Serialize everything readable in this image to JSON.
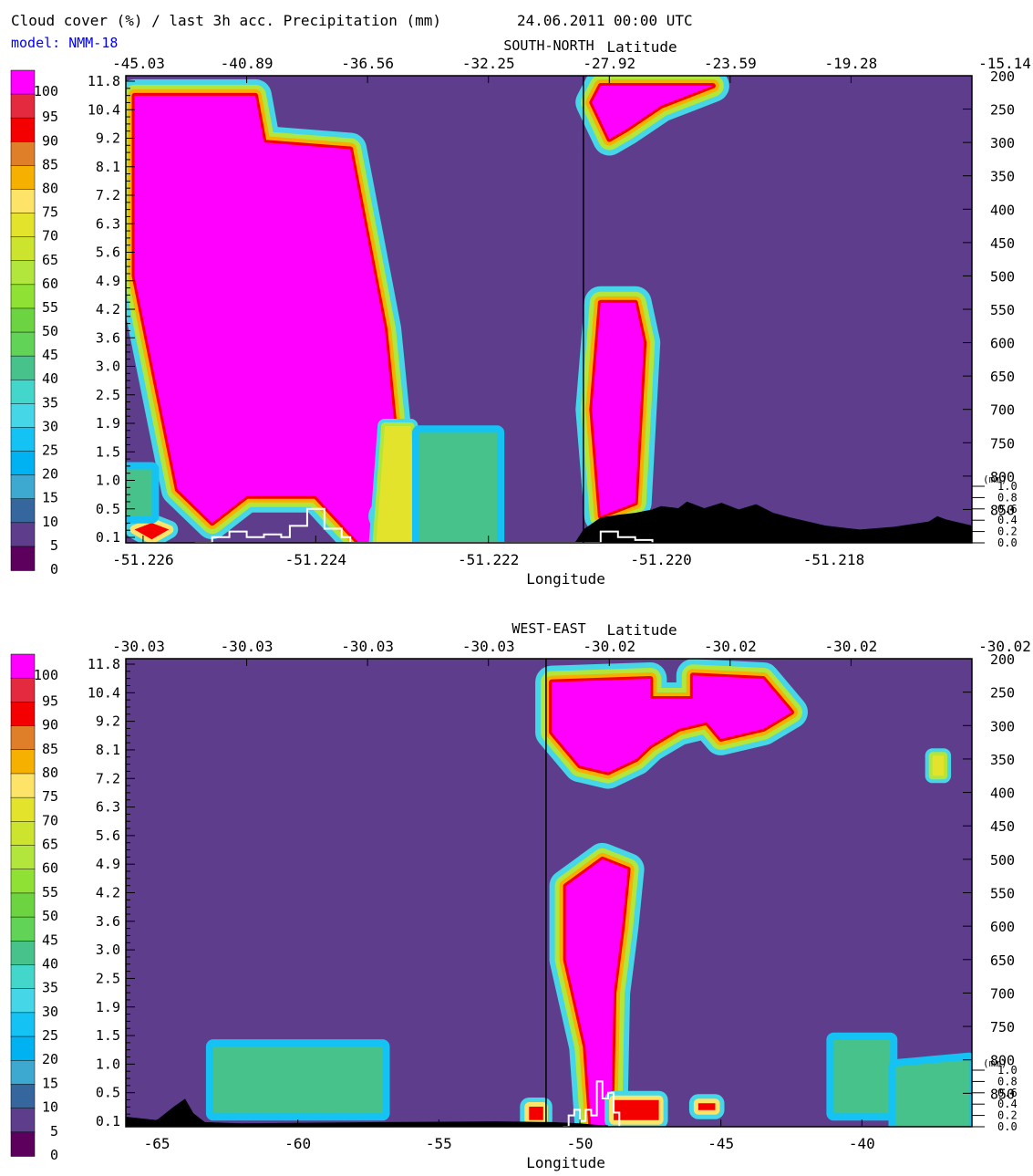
{
  "header": {
    "title": "Cloud cover (%) / last 3h acc. Precipitation (mm)",
    "datetime": "24.06.2011   00:00 UTC",
    "model": "model: NMM-18",
    "model_color": "#0000ff"
  },
  "colors": {
    "background": "#ffffff",
    "cloud_free": "#5e3d8d",
    "orography": "#000000",
    "precip_line": "#ffffff",
    "axis": "#000000"
  },
  "colorbar": {
    "labels": [
      "0",
      "5",
      "10",
      "15",
      "20",
      "25",
      "30",
      "35",
      "40",
      "45",
      "50",
      "55",
      "60",
      "65",
      "70",
      "75",
      "80",
      "85",
      "90",
      "95",
      "100"
    ],
    "colors": [
      "#5d005d",
      "#5e3d8d",
      "#35669d",
      "#3da8d0",
      "#00b2f2",
      "#14c2f4",
      "#45d6e7",
      "#43d7cb",
      "#47c28b",
      "#61d458",
      "#6cd440",
      "#8fe233",
      "#b2e63d",
      "#cde42e",
      "#e3e32c",
      "#fde468",
      "#f6b100",
      "#e07f29",
      "#f50000",
      "#e42a3e",
      "#ff00ff"
    ]
  },
  "chart_data": [
    {
      "type": "heatmap",
      "panel": "SOUTH-NORTH",
      "section_label": "SOUTH-NORTH",
      "top_axis_label": "Latitude",
      "bottom_axis_label": "Longitude",
      "top_ticks": [
        "-45.03",
        "-40.89",
        "-36.56",
        "-32.25",
        "-27.92",
        "-23.59",
        "-19.28",
        "-15.14"
      ],
      "bottom_ticks": [
        {
          "value": -51.226,
          "label": "-51.226"
        },
        {
          "value": -51.224,
          "label": "-51.224"
        },
        {
          "value": -51.222,
          "label": "-51.222"
        },
        {
          "value": -51.22,
          "label": "-51.220"
        },
        {
          "value": -51.218,
          "label": "-51.218"
        }
      ],
      "xlim": [
        -51.2262,
        -51.2164
      ],
      "marker_x": -51.2209,
      "left_ticks": [
        "11.8",
        "10.4",
        "9.2",
        "8.1",
        "7.2",
        "6.3",
        "5.6",
        "4.9",
        "4.2",
        "3.6",
        "3.0",
        "2.5",
        "1.9",
        "1.5",
        "1.0",
        "0.5",
        "0.1"
      ],
      "right_ticks": [
        "200",
        "250",
        "300",
        "350",
        "400",
        "450",
        "500",
        "550",
        "600",
        "650",
        "700",
        "750",
        "800",
        "850"
      ],
      "pressure_range_hpa": [
        200,
        900
      ],
      "precip_ticks": [
        "1.0",
        "0.8",
        "0.6",
        "0.4",
        "0.2",
        "0.0"
      ],
      "precip_unit": "(mm)",
      "precip_range_mm": [
        0,
        1.0
      ],
      "clouds": [
        {
          "cover": 100,
          "poly": [
            [
              -51.2261,
              230
            ],
            [
              -51.2247,
              230
            ],
            [
              -51.2246,
              300
            ],
            [
              -51.2236,
              310
            ],
            [
              -51.2232,
              580
            ],
            [
              -51.223,
              840
            ],
            [
              -51.2225,
              900
            ],
            [
              -51.2235,
              900
            ],
            [
              -51.224,
              830
            ],
            [
              -51.2248,
              830
            ],
            [
              -51.2252,
              870
            ],
            [
              -51.2256,
              820
            ],
            [
              -51.2261,
              500
            ]
          ]
        },
        {
          "cover": 100,
          "poly": [
            [
              -51.2207,
              215
            ],
            [
              -51.2194,
              215
            ],
            [
              -51.22,
              245
            ],
            [
              -51.2204,
              280
            ],
            [
              -51.2206,
              295
            ],
            [
              -51.2208,
              240
            ]
          ]
        },
        {
          "cover": 100,
          "poly": [
            [
              -51.2207,
              540
            ],
            [
              -51.2203,
              540
            ],
            [
              -51.2202,
              600
            ],
            [
              -51.2203,
              840
            ],
            [
              -51.2207,
              860
            ],
            [
              -51.2208,
              700
            ]
          ]
        },
        {
          "cover": 100,
          "poly": [
            [
              -51.2232,
              860
            ],
            [
              -51.223,
              900
            ],
            [
              -51.2227,
              900
            ]
          ]
        },
        {
          "cover": 90,
          "poly": [
            [
              -51.2261,
              880
            ],
            [
              -51.2259,
              870
            ],
            [
              -51.2257,
              880
            ],
            [
              -51.2259,
              895
            ]
          ]
        },
        {
          "cover": 60,
          "poly": [
            [
              -51.2232,
              725
            ],
            [
              -51.2229,
              725
            ],
            [
              -51.2228,
              900
            ],
            [
              -51.2233,
              900
            ]
          ]
        },
        {
          "cover": 40,
          "poly": [
            [
              -51.2228,
              735
            ],
            [
              -51.2219,
              735
            ],
            [
              -51.2219,
              900
            ],
            [
              -51.2228,
              900
            ]
          ]
        },
        {
          "cover": 40,
          "poly": [
            [
              -51.2262,
              790
            ],
            [
              -51.2259,
              790
            ],
            [
              -51.2259,
              860
            ],
            [
              -51.2262,
              860
            ]
          ]
        }
      ],
      "orography": [
        [
          -51.221,
          900
        ],
        [
          -51.2209,
          880
        ],
        [
          -51.2207,
          862
        ],
        [
          -51.2205,
          858
        ],
        [
          -51.2203,
          855
        ],
        [
          -51.2201,
          850
        ],
        [
          -51.22,
          845
        ],
        [
          -51.2198,
          848
        ],
        [
          -51.2197,
          838
        ],
        [
          -51.2195,
          848
        ],
        [
          -51.2193,
          840
        ],
        [
          -51.2191,
          850
        ],
        [
          -51.2189,
          842
        ],
        [
          -51.2187,
          855
        ],
        [
          -51.2185,
          862
        ],
        [
          -51.2183,
          868
        ],
        [
          -51.2181,
          874
        ],
        [
          -51.2179,
          877
        ],
        [
          -51.2177,
          880
        ],
        [
          -51.2175,
          878
        ],
        [
          -51.2173,
          876
        ],
        [
          -51.2171,
          872
        ],
        [
          -51.2169,
          868
        ],
        [
          -51.2168,
          860
        ],
        [
          -51.2167,
          865
        ],
        [
          -51.2166,
          868
        ],
        [
          -51.2164,
          874
        ],
        [
          -51.2164,
          900
        ]
      ],
      "precipitation": [
        [
          -51.2254,
          0.0
        ],
        [
          -51.2252,
          0.1
        ],
        [
          -51.225,
          0.2
        ],
        [
          -51.2248,
          0.1
        ],
        [
          -51.2246,
          0.15
        ],
        [
          -51.2244,
          0.1
        ],
        [
          -51.2243,
          0.3
        ],
        [
          -51.2241,
          0.6
        ],
        [
          -51.2239,
          0.25
        ],
        [
          -51.2237,
          0.1
        ],
        [
          -51.2236,
          0.0
        ],
        [
          -51.2209,
          0.0
        ],
        [
          -51.2207,
          0.2
        ],
        [
          -51.2205,
          0.1
        ],
        [
          -51.2203,
          0.05
        ],
        [
          -51.2201,
          0.0
        ]
      ]
    },
    {
      "type": "heatmap",
      "panel": "WEST-EAST",
      "section_label": "WEST-EAST",
      "top_axis_label": "Latitude",
      "bottom_axis_label": "Longitude",
      "top_ticks": [
        "-30.03",
        "-30.03",
        "-30.03",
        "-30.03",
        "-30.02",
        "-30.02",
        "-30.02",
        "-30.02"
      ],
      "bottom_ticks": [
        {
          "value": -65,
          "label": "-65"
        },
        {
          "value": -60,
          "label": "-60"
        },
        {
          "value": -55,
          "label": "-55"
        },
        {
          "value": -50,
          "label": "-50"
        },
        {
          "value": -45,
          "label": "-45"
        },
        {
          "value": -40,
          "label": "-40"
        }
      ],
      "xlim": [
        -66.1,
        -36.1
      ],
      "marker_x": -51.2,
      "left_ticks": [
        "11.8",
        "10.4",
        "9.2",
        "8.1",
        "7.2",
        "6.3",
        "5.6",
        "4.9",
        "4.2",
        "3.6",
        "3.0",
        "2.5",
        "1.9",
        "1.5",
        "1.0",
        "0.5",
        "0.1"
      ],
      "right_ticks": [
        "200",
        "250",
        "300",
        "350",
        "400",
        "450",
        "500",
        "550",
        "600",
        "650",
        "700",
        "750",
        "800",
        "850"
      ],
      "pressure_range_hpa": [
        200,
        900
      ],
      "precip_ticks": [
        "1.0",
        "0.8",
        "0.6",
        "0.4",
        "0.2",
        "0.0"
      ],
      "precip_unit": "(mm)",
      "precip_range_mm": [
        0,
        1.0
      ],
      "clouds": [
        {
          "cover": 100,
          "poly": [
            [
              -51,
              235
            ],
            [
              -47.5,
              230
            ],
            [
              -47.5,
              260
            ],
            [
              -46,
              260
            ],
            [
              -46,
              225
            ],
            [
              -43.5,
              230
            ],
            [
              -42.5,
              280
            ],
            [
              -43.5,
              305
            ],
            [
              -45,
              320
            ],
            [
              -45.5,
              295
            ],
            [
              -46.5,
              305
            ],
            [
              -47.5,
              330
            ],
            [
              -48,
              350
            ],
            [
              -49,
              370
            ],
            [
              -50,
              360
            ],
            [
              -51,
              310
            ]
          ]
        },
        {
          "cover": 100,
          "poly": [
            [
              -49.2,
              500
            ],
            [
              -48.3,
              515
            ],
            [
              -48.5,
              600
            ],
            [
              -48.8,
              700
            ],
            [
              -48.9,
              900
            ],
            [
              -49.6,
              900
            ],
            [
              -49.8,
              780
            ],
            [
              -50.5,
              650
            ],
            [
              -50.5,
              540
            ]
          ]
        },
        {
          "cover": 40,
          "poly": [
            [
              -63,
              780
            ],
            [
              -57,
              780
            ],
            [
              -57,
              880
            ],
            [
              -63,
              880
            ]
          ]
        },
        {
          "cover": 40,
          "poly": [
            [
              -41,
              770
            ],
            [
              -39,
              770
            ],
            [
              -39,
              880
            ],
            [
              -41,
              880
            ]
          ]
        },
        {
          "cover": 40,
          "poly": [
            [
              -38.8,
              810
            ],
            [
              -36.2,
              800
            ],
            [
              -36.2,
              900
            ],
            [
              -38.8,
              900
            ]
          ]
        },
        {
          "cover": 90,
          "poly": [
            [
              -48.8,
              860
            ],
            [
              -47.2,
              860
            ],
            [
              -47.2,
              890
            ],
            [
              -48.8,
              890
            ]
          ]
        },
        {
          "cover": 90,
          "poly": [
            [
              -51.8,
              870
            ],
            [
              -51.3,
              870
            ],
            [
              -51.3,
              890
            ],
            [
              -51.8,
              890
            ]
          ]
        },
        {
          "cover": 90,
          "poly": [
            [
              -45.8,
              865
            ],
            [
              -45.2,
              865
            ],
            [
              -45.2,
              875
            ],
            [
              -45.8,
              875
            ]
          ]
        },
        {
          "cover": 60,
          "poly": [
            [
              -37.5,
              345
            ],
            [
              -37.1,
              345
            ],
            [
              -37.1,
              375
            ],
            [
              -37.5,
              375
            ]
          ]
        }
      ],
      "orography": [
        [
          -66.1,
          900
        ],
        [
          -66.1,
          885
        ],
        [
          -65.0,
          890
        ],
        [
          -64.4,
          870
        ],
        [
          -64.0,
          858
        ],
        [
          -63.7,
          880
        ],
        [
          -63.3,
          893
        ],
        [
          -62.0,
          895
        ],
        [
          -57.0,
          893
        ],
        [
          -53.0,
          892
        ],
        [
          -51.0,
          893
        ],
        [
          -50.0,
          895
        ],
        [
          -49.5,
          897
        ],
        [
          -49.0,
          898
        ],
        [
          -49.0,
          900
        ]
      ],
      "precipitation": [
        [
          -50.6,
          0.0
        ],
        [
          -50.4,
          0.2
        ],
        [
          -50.2,
          0.3
        ],
        [
          -50.0,
          0.1
        ],
        [
          -49.8,
          0.3
        ],
        [
          -49.6,
          0.2
        ],
        [
          -49.4,
          0.8
        ],
        [
          -49.2,
          0.5
        ],
        [
          -49.0,
          0.6
        ],
        [
          -48.8,
          0.25
        ],
        [
          -48.6,
          0.0
        ]
      ]
    }
  ]
}
